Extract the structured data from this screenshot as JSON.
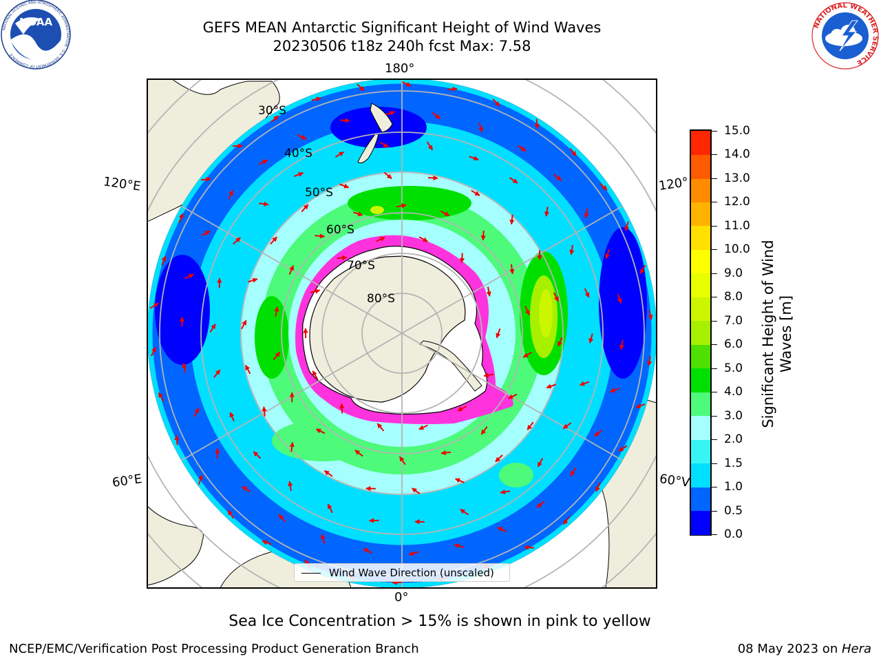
{
  "header": {
    "title_line1": "GEFS MEAN Antarctic Significant Height of Wind Waves",
    "title_line2": "20230506 t18z 240h fcst   Max: 7.58"
  },
  "logos": {
    "noaa_text": "NOAA",
    "noaa_ring": "NATIONAL OCEANIC AND ATMOSPHERIC ADMINISTRATION · U.S. DEPARTMENT OF COMMERCE",
    "nws_ring": "NATIONAL WEATHER SERVICE"
  },
  "map": {
    "longitude_labels": {
      "top": "180°",
      "bottom": "0°",
      "upper_left": "120°E",
      "lower_left": "60°E",
      "upper_right": "120°",
      "lower_right": "60°V"
    },
    "latitude_labels": [
      "30°S",
      "40°S",
      "50°S",
      "60°S",
      "70°S",
      "80°S"
    ],
    "legend_label": "Wind Wave Direction (unscaled)",
    "colors": {
      "land": "#efeedd",
      "ice_shelf": "#ffffff",
      "sea_ice": "#ff33dd",
      "arrows": "#ee0000",
      "grid": "#b4b4b4"
    }
  },
  "colorbar": {
    "title": "Significant Height of Wind Waves [m]",
    "title_line1": "Significant Height of Wind",
    "title_line2": "Waves [m]",
    "ticks": [
      "0.0",
      "0.5",
      "1.0",
      "1.5",
      "2.0",
      "3.0",
      "4.0",
      "5.0",
      "6.0",
      "7.0",
      "8.0",
      "9.0",
      "10.0",
      "11.0",
      "12.0",
      "13.0",
      "14.0",
      "15.0"
    ],
    "colors": [
      "#0000ff",
      "#0066ff",
      "#00dfff",
      "#38f5f5",
      "#a6ffff",
      "#4dfa7a",
      "#00e000",
      "#4de000",
      "#a6f000",
      "#ccf500",
      "#e8ff00",
      "#ffff00",
      "#ffe000",
      "#ffb300",
      "#ff8c00",
      "#ff5a00",
      "#ff2600"
    ]
  },
  "footer": {
    "note": "Sea Ice Concentration > 15% is shown in pink to yellow",
    "credit": "NCEP/EMC/Verification Post Processing Product Generation Branch",
    "date": "08 May 2023 on ",
    "host": "Hera"
  }
}
